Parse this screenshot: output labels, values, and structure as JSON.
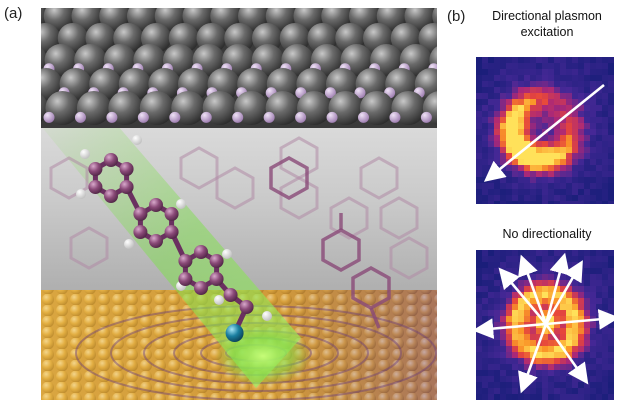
{
  "panel_a": {
    "label": "(a)"
  },
  "panel_b": {
    "label": "(b)",
    "top_caption_line1": "Directional plasmon",
    "top_caption_line2": "excitation",
    "bottom_caption": "No directionality"
  },
  "colors": {
    "surface_atoms_dark": "#4a4a4a",
    "surface_atoms_light": "#9a9a9a",
    "dopant_atoms": "#b99ac9",
    "molecule_carbon": "#8a4a78",
    "molecule_hydrogen": "#f2f2f2",
    "terminal_atom": "#1a7fa0",
    "substrate_gold": "#e8b84a",
    "light_beam": "#7de04a",
    "heatmap_background": "#1a1e7a",
    "heatmap_hot": "#ffd34a"
  }
}
